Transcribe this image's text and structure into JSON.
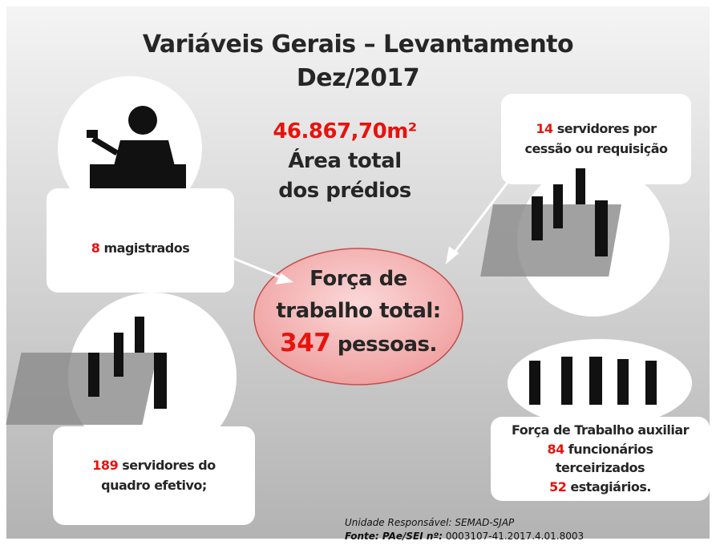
{
  "header": {
    "title_line1": "Variáveis Gerais – Levantamento",
    "title_line2": "Dez/2017"
  },
  "area": {
    "value": "46.867,70m²",
    "label_line1": "Área total",
    "label_line2": "dos prédios"
  },
  "total": {
    "line1": "Força de",
    "line2": "trabalho total:",
    "number": "347",
    "unit": "pessoas."
  },
  "magistrates": {
    "number": "8",
    "label": "magistrados"
  },
  "ceded": {
    "number": "14",
    "label_line1": "servidores por",
    "label_line2": "cessão ou requisição"
  },
  "permanent": {
    "number": "189",
    "label_line1": "servidores do",
    "label_line2": "quadro efetivo;"
  },
  "auxiliary": {
    "title": "Força de Trabalho auxiliar",
    "outsourced_number": "84",
    "outsourced_line1": "funcionários",
    "outsourced_line2": "terceirizados",
    "interns_number": "52",
    "interns_label": "estagiários."
  },
  "footer": {
    "unit": "Unidade Responsável: SEMAD-SJAP",
    "source_label": "Fonte: PAe/SEI nº:",
    "source_number": "0003107-41.2017.4.01.8003"
  }
}
